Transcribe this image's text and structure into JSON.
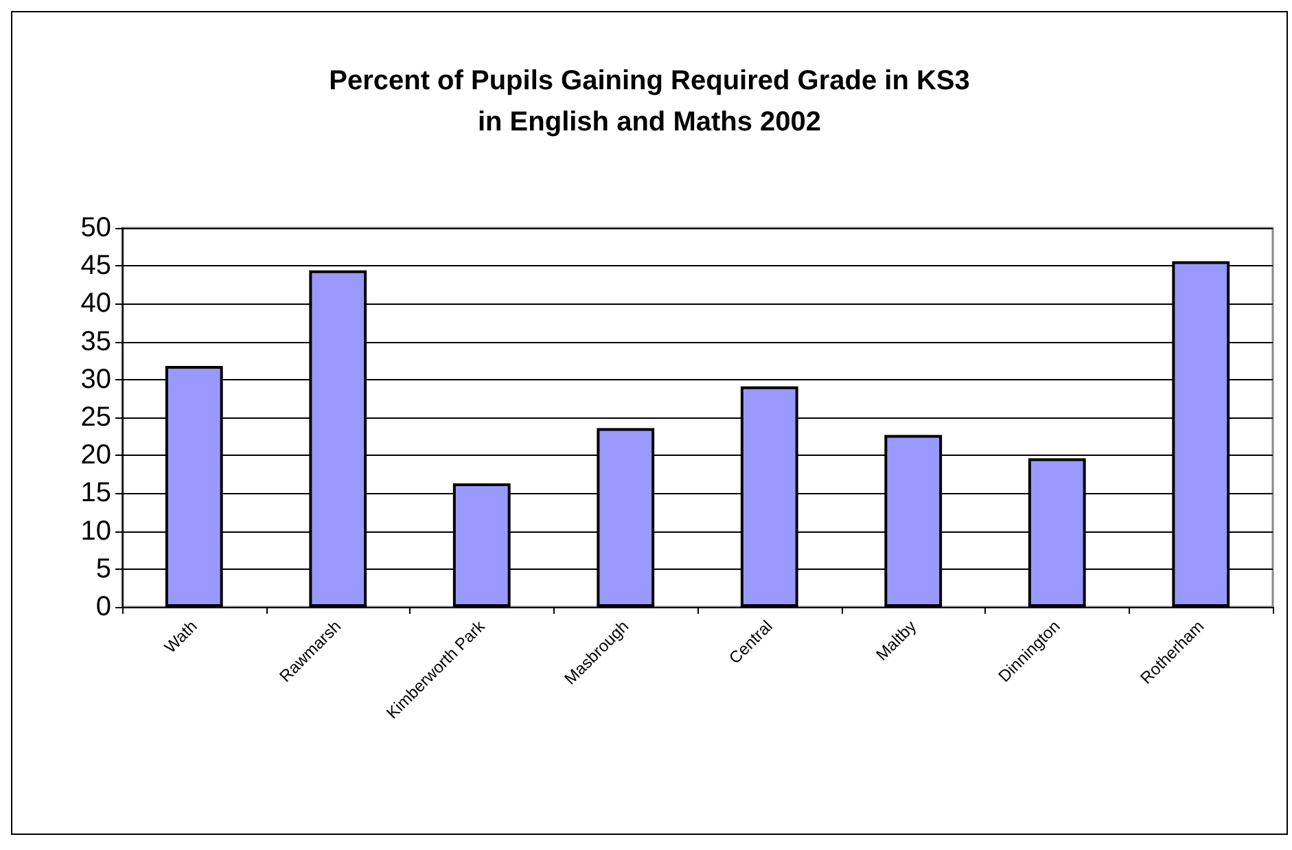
{
  "chart_data": {
    "type": "bar",
    "title": "Percent of Pupils Gaining Required Grade in KS3\nin English and Maths 2002",
    "categories": [
      "Wath",
      "Rawmarsh",
      "Kimberworth Park",
      "Masbrough",
      "Central",
      "Maltby",
      "Dinnington",
      "Rotherham"
    ],
    "values": [
      31.8,
      44.4,
      16.3,
      23.6,
      29.1,
      22.7,
      19.6,
      45.6
    ],
    "color": "#9999ff",
    "ylim": [
      0,
      50
    ],
    "yticks": [
      0,
      5,
      10,
      15,
      20,
      25,
      30,
      35,
      40,
      45,
      50
    ],
    "grid": "y"
  }
}
